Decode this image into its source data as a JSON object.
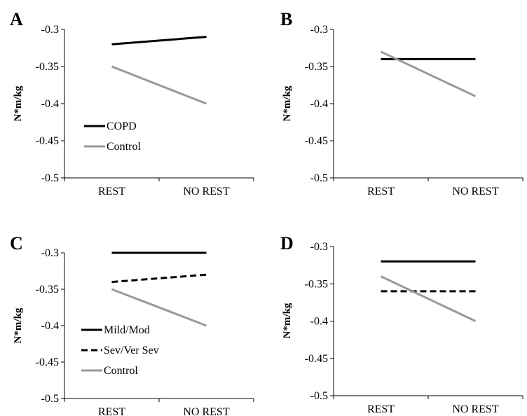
{
  "chart_data": [
    {
      "type": "line",
      "panel_label": "A",
      "ylabel": "N*m/kg",
      "categories": [
        "REST",
        "NO REST"
      ],
      "ylim": [
        -0.5,
        -0.3
      ],
      "yticks": [
        -0.3,
        -0.35,
        -0.4,
        -0.45,
        -0.5
      ],
      "ytick_labels": [
        "-0.3",
        "-0.35",
        "-0.4",
        "-0.45",
        "-0.5"
      ],
      "grid": false,
      "legend_position": "lower-left",
      "series": [
        {
          "name": "COPD",
          "values": [
            -0.32,
            -0.31
          ],
          "color": "#000000",
          "style": "solid"
        },
        {
          "name": "Control",
          "values": [
            -0.35,
            -0.4
          ],
          "color": "#999999",
          "style": "solid"
        }
      ]
    },
    {
      "type": "line",
      "panel_label": "B",
      "ylabel": "N*m/kg",
      "categories": [
        "REST",
        "NO REST"
      ],
      "ylim": [
        -0.5,
        -0.3
      ],
      "yticks": [
        -0.3,
        -0.35,
        -0.4,
        -0.45,
        -0.5
      ],
      "ytick_labels": [
        "-0.3",
        "-0.35",
        "-0.4",
        "-0.45",
        "-0.5"
      ],
      "grid": false,
      "legend_position": "none",
      "series": [
        {
          "values": [
            -0.34,
            -0.34
          ],
          "color": "#000000",
          "style": "solid"
        },
        {
          "values": [
            -0.33,
            -0.39
          ],
          "color": "#999999",
          "style": "solid"
        }
      ]
    },
    {
      "type": "line",
      "panel_label": "C",
      "ylabel": "N*m/kg",
      "categories": [
        "REST",
        "NO REST"
      ],
      "ylim": [
        -0.5,
        -0.3
      ],
      "yticks": [
        -0.3,
        -0.35,
        -0.4,
        -0.45,
        -0.5
      ],
      "ytick_labels": [
        "-0.3",
        "-0.35",
        "-0.4",
        "-0.45",
        "-0.5"
      ],
      "grid": false,
      "legend_position": "lower-left",
      "series": [
        {
          "name": "Mild/Mod",
          "values": [
            -0.3,
            -0.3
          ],
          "color": "#000000",
          "style": "solid"
        },
        {
          "name": "Sev/Ver Sev",
          "values": [
            -0.34,
            -0.33
          ],
          "color": "#000000",
          "style": "dashed"
        },
        {
          "name": "Control",
          "values": [
            -0.35,
            -0.4
          ],
          "color": "#999999",
          "style": "solid"
        }
      ]
    },
    {
      "type": "line",
      "panel_label": "D",
      "ylabel": "N*m/kg",
      "categories": [
        "REST",
        "NO REST"
      ],
      "ylim": [
        -0.5,
        -0.3
      ],
      "yticks": [
        -0.3,
        -0.35,
        -0.4,
        -0.45,
        -0.5
      ],
      "ytick_labels": [
        "-0.3",
        "-0.35",
        "-0.4",
        "-0.45",
        "-0.5"
      ],
      "grid": false,
      "legend_position": "none",
      "series": [
        {
          "values": [
            -0.32,
            -0.32
          ],
          "color": "#000000",
          "style": "solid"
        },
        {
          "values": [
            -0.36,
            -0.36
          ],
          "color": "#000000",
          "style": "dashed"
        },
        {
          "values": [
            -0.34,
            -0.4
          ],
          "color": "#999999",
          "style": "solid"
        }
      ]
    }
  ]
}
